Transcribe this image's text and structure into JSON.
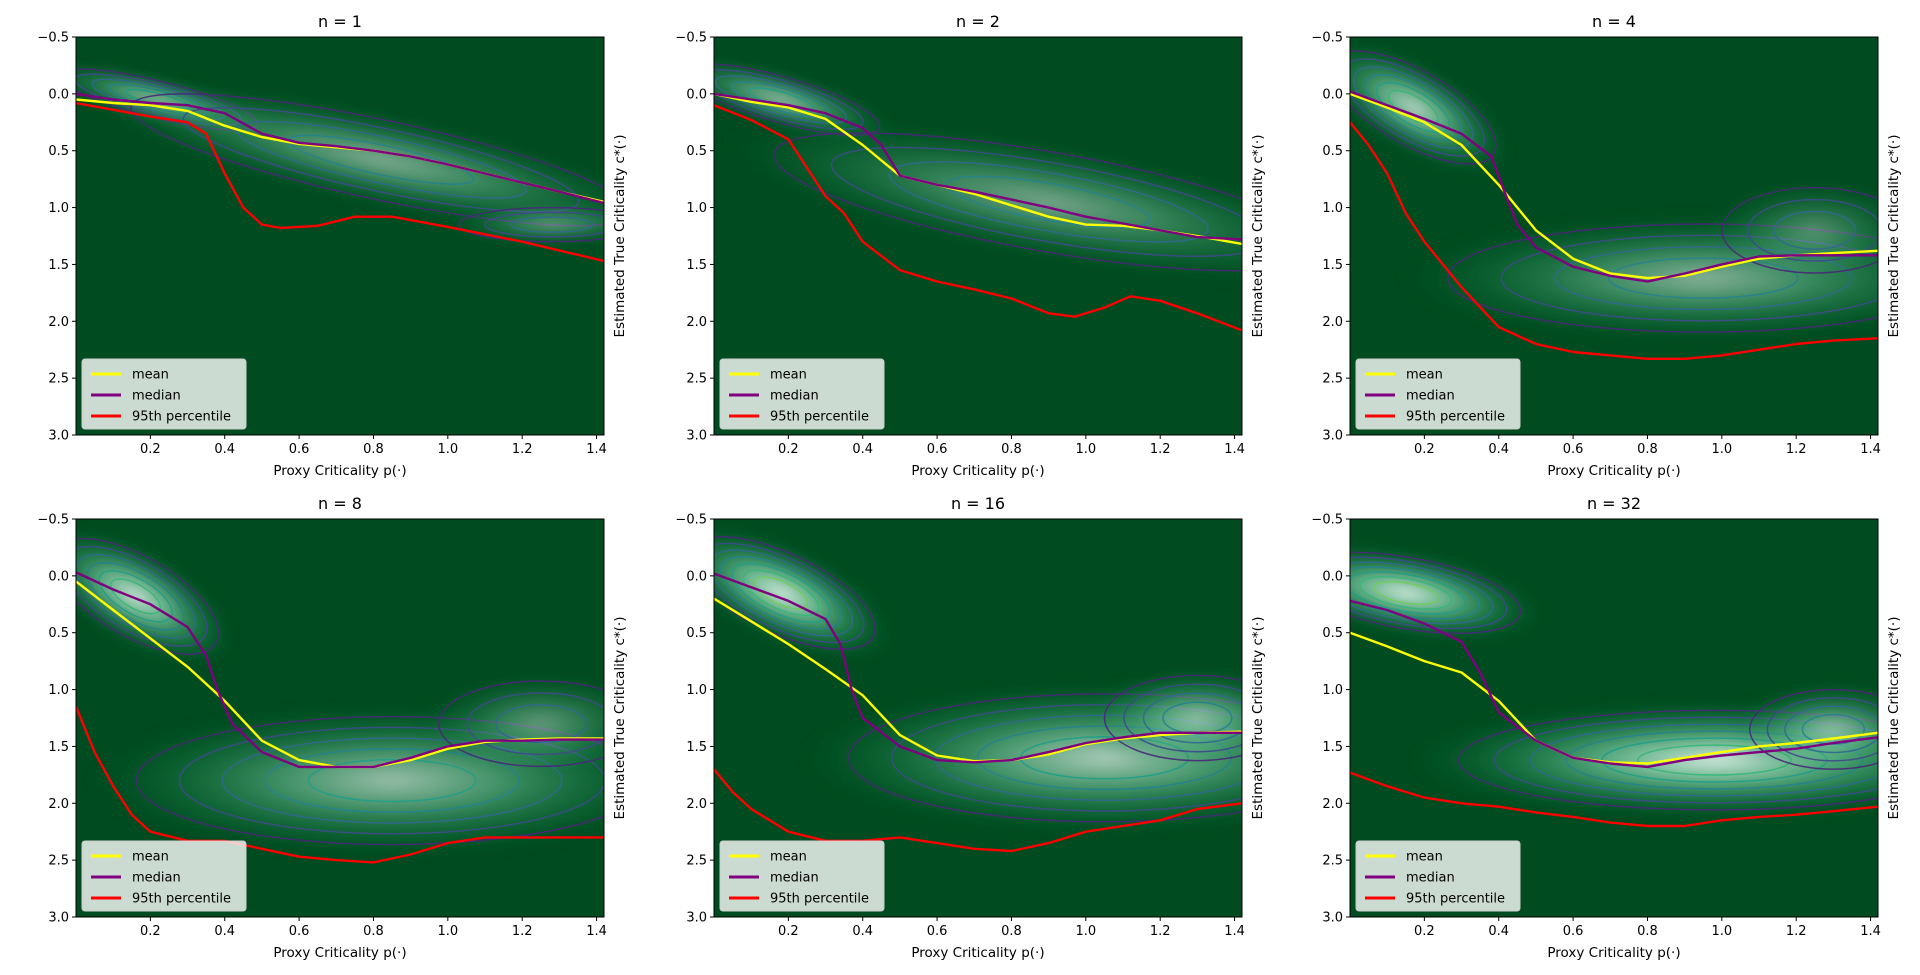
{
  "figure": {
    "type": "kde-contour-grid"
  },
  "colors": {
    "background_dark": "#004b20",
    "mean": "#ffff00",
    "median": "#800080",
    "p95": "#ff0000",
    "contour_levels": [
      "#482878",
      "#3e4a89",
      "#31688e",
      "#26828e",
      "#1f9e89",
      "#35b779",
      "#6ece58",
      "#b5de2b"
    ]
  },
  "legend": {
    "mean": "mean",
    "median": "median",
    "p95": "95th percentile"
  },
  "axes_common": {
    "xlabel": "Proxy Criticality p(·)",
    "ylabel": "Estimated True Criticality c*(·)",
    "xlim": [
      0.0,
      1.42
    ],
    "ylim": [
      3.0,
      -0.5
    ],
    "xticks": [
      "0.2",
      "0.4",
      "0.6",
      "0.8",
      "1.0",
      "1.2",
      "1.4"
    ],
    "yticks": [
      "−0.5",
      "0.0",
      "0.5",
      "1.0",
      "1.5",
      "2.0",
      "2.5",
      "3.0"
    ]
  },
  "chart_data": [
    {
      "type": "heatmap",
      "title": "n = 1",
      "mean": [
        [
          0.0,
          0.05
        ],
        [
          0.1,
          0.08
        ],
        [
          0.2,
          0.1
        ],
        [
          0.3,
          0.15
        ],
        [
          0.4,
          0.28
        ],
        [
          0.5,
          0.38
        ],
        [
          0.6,
          0.44
        ],
        [
          0.7,
          0.47
        ],
        [
          0.8,
          0.5
        ],
        [
          0.9,
          0.55
        ],
        [
          1.0,
          0.62
        ],
        [
          1.1,
          0.7
        ],
        [
          1.2,
          0.78
        ],
        [
          1.3,
          0.86
        ],
        [
          1.42,
          0.95
        ]
      ],
      "median": [
        [
          0.0,
          0.0
        ],
        [
          0.1,
          0.05
        ],
        [
          0.2,
          0.08
        ],
        [
          0.3,
          0.1
        ],
        [
          0.4,
          0.17
        ],
        [
          0.5,
          0.35
        ],
        [
          0.6,
          0.43
        ],
        [
          0.7,
          0.46
        ],
        [
          0.8,
          0.5
        ],
        [
          0.9,
          0.55
        ],
        [
          1.0,
          0.62
        ],
        [
          1.1,
          0.7
        ],
        [
          1.2,
          0.78
        ],
        [
          1.3,
          0.86
        ],
        [
          1.42,
          0.96
        ]
      ],
      "p95": [
        [
          0.0,
          0.08
        ],
        [
          0.1,
          0.14
        ],
        [
          0.2,
          0.2
        ],
        [
          0.3,
          0.25
        ],
        [
          0.35,
          0.35
        ],
        [
          0.4,
          0.7
        ],
        [
          0.45,
          1.0
        ],
        [
          0.5,
          1.15
        ],
        [
          0.55,
          1.18
        ],
        [
          0.65,
          1.16
        ],
        [
          0.75,
          1.08
        ],
        [
          0.85,
          1.08
        ],
        [
          1.0,
          1.17
        ],
        [
          1.2,
          1.3
        ],
        [
          1.42,
          1.47
        ]
      ],
      "blobs": [
        {
          "x": 0.22,
          "y": 0.05,
          "rx": 0.22,
          "ry": 0.13,
          "rot": 14,
          "s": 0.5
        },
        {
          "x": 0.82,
          "y": 0.58,
          "rx": 0.55,
          "ry": 0.28,
          "rot": 12,
          "s": 0.38
        },
        {
          "x": 1.28,
          "y": 1.15,
          "rx": 0.2,
          "ry": 0.12,
          "rot": 0,
          "s": 0.3
        }
      ]
    },
    {
      "type": "heatmap",
      "title": "n = 2",
      "mean": [
        [
          0.0,
          0.0
        ],
        [
          0.1,
          0.07
        ],
        [
          0.2,
          0.12
        ],
        [
          0.3,
          0.22
        ],
        [
          0.4,
          0.45
        ],
        [
          0.5,
          0.72
        ],
        [
          0.6,
          0.8
        ],
        [
          0.7,
          0.88
        ],
        [
          0.8,
          0.98
        ],
        [
          0.9,
          1.08
        ],
        [
          1.0,
          1.15
        ],
        [
          1.1,
          1.16
        ],
        [
          1.2,
          1.2
        ],
        [
          1.3,
          1.25
        ],
        [
          1.42,
          1.32
        ]
      ],
      "median": [
        [
          0.0,
          0.0
        ],
        [
          0.1,
          0.05
        ],
        [
          0.2,
          0.1
        ],
        [
          0.3,
          0.17
        ],
        [
          0.4,
          0.3
        ],
        [
          0.45,
          0.45
        ],
        [
          0.5,
          0.72
        ],
        [
          0.6,
          0.8
        ],
        [
          0.7,
          0.86
        ],
        [
          0.8,
          0.93
        ],
        [
          0.9,
          1.0
        ],
        [
          1.0,
          1.08
        ],
        [
          1.1,
          1.14
        ],
        [
          1.2,
          1.2
        ],
        [
          1.3,
          1.26
        ],
        [
          1.42,
          1.28
        ]
      ],
      "p95": [
        [
          0.0,
          0.1
        ],
        [
          0.1,
          0.23
        ],
        [
          0.2,
          0.4
        ],
        [
          0.25,
          0.65
        ],
        [
          0.3,
          0.9
        ],
        [
          0.35,
          1.05
        ],
        [
          0.4,
          1.3
        ],
        [
          0.5,
          1.55
        ],
        [
          0.6,
          1.65
        ],
        [
          0.7,
          1.72
        ],
        [
          0.8,
          1.8
        ],
        [
          0.9,
          1.93
        ],
        [
          0.97,
          1.96
        ],
        [
          1.05,
          1.88
        ],
        [
          1.12,
          1.78
        ],
        [
          1.2,
          1.82
        ],
        [
          1.3,
          1.93
        ],
        [
          1.42,
          2.08
        ]
      ],
      "blobs": [
        {
          "x": 0.18,
          "y": 0.05,
          "rx": 0.22,
          "ry": 0.16,
          "rot": 16,
          "s": 0.45
        },
        {
          "x": 0.9,
          "y": 0.95,
          "rx": 0.6,
          "ry": 0.35,
          "rot": 10,
          "s": 0.35
        }
      ]
    },
    {
      "type": "heatmap",
      "title": "n = 4",
      "mean": [
        [
          0.0,
          0.0
        ],
        [
          0.1,
          0.12
        ],
        [
          0.2,
          0.25
        ],
        [
          0.3,
          0.45
        ],
        [
          0.4,
          0.8
        ],
        [
          0.5,
          1.2
        ],
        [
          0.6,
          1.45
        ],
        [
          0.7,
          1.58
        ],
        [
          0.8,
          1.62
        ],
        [
          0.9,
          1.6
        ],
        [
          1.0,
          1.52
        ],
        [
          1.1,
          1.45
        ],
        [
          1.2,
          1.42
        ],
        [
          1.3,
          1.4
        ],
        [
          1.42,
          1.38
        ]
      ],
      "median": [
        [
          0.0,
          -0.02
        ],
        [
          0.1,
          0.1
        ],
        [
          0.2,
          0.22
        ],
        [
          0.3,
          0.35
        ],
        [
          0.38,
          0.55
        ],
        [
          0.42,
          0.9
        ],
        [
          0.45,
          1.15
        ],
        [
          0.5,
          1.35
        ],
        [
          0.6,
          1.52
        ],
        [
          0.7,
          1.6
        ],
        [
          0.8,
          1.65
        ],
        [
          0.9,
          1.58
        ],
        [
          1.0,
          1.5
        ],
        [
          1.1,
          1.43
        ],
        [
          1.2,
          1.42
        ],
        [
          1.3,
          1.42
        ],
        [
          1.42,
          1.42
        ]
      ],
      "p95": [
        [
          0.0,
          0.25
        ],
        [
          0.05,
          0.45
        ],
        [
          0.1,
          0.7
        ],
        [
          0.15,
          1.05
        ],
        [
          0.2,
          1.3
        ],
        [
          0.3,
          1.7
        ],
        [
          0.4,
          2.05
        ],
        [
          0.5,
          2.2
        ],
        [
          0.6,
          2.27
        ],
        [
          0.7,
          2.3
        ],
        [
          0.8,
          2.33
        ],
        [
          0.9,
          2.33
        ],
        [
          1.0,
          2.3
        ],
        [
          1.1,
          2.25
        ],
        [
          1.2,
          2.2
        ],
        [
          1.3,
          2.17
        ],
        [
          1.42,
          2.15
        ]
      ],
      "blobs": [
        {
          "x": 0.17,
          "y": 0.12,
          "rx": 0.2,
          "ry": 0.26,
          "rot": 30,
          "s": 0.55
        },
        {
          "x": 0.95,
          "y": 1.62,
          "rx": 0.55,
          "ry": 0.38,
          "rot": 0,
          "s": 0.4
        },
        {
          "x": 1.25,
          "y": 1.2,
          "rx": 0.2,
          "ry": 0.3,
          "rot": 0,
          "s": 0.25
        }
      ]
    },
    {
      "type": "heatmap",
      "title": "n = 8",
      "mean": [
        [
          0.0,
          0.05
        ],
        [
          0.1,
          0.3
        ],
        [
          0.2,
          0.55
        ],
        [
          0.3,
          0.8
        ],
        [
          0.4,
          1.1
        ],
        [
          0.5,
          1.45
        ],
        [
          0.6,
          1.62
        ],
        [
          0.7,
          1.68
        ],
        [
          0.8,
          1.68
        ],
        [
          0.9,
          1.62
        ],
        [
          1.0,
          1.52
        ],
        [
          1.1,
          1.46
        ],
        [
          1.2,
          1.44
        ],
        [
          1.3,
          1.43
        ],
        [
          1.42,
          1.43
        ]
      ],
      "median": [
        [
          0.0,
          -0.03
        ],
        [
          0.1,
          0.12
        ],
        [
          0.2,
          0.25
        ],
        [
          0.3,
          0.45
        ],
        [
          0.35,
          0.7
        ],
        [
          0.38,
          1.0
        ],
        [
          0.42,
          1.3
        ],
        [
          0.5,
          1.55
        ],
        [
          0.6,
          1.68
        ],
        [
          0.7,
          1.68
        ],
        [
          0.8,
          1.68
        ],
        [
          0.9,
          1.6
        ],
        [
          1.0,
          1.5
        ],
        [
          1.1,
          1.45
        ],
        [
          1.2,
          1.45
        ],
        [
          1.3,
          1.44
        ],
        [
          1.42,
          1.44
        ]
      ],
      "p95": [
        [
          0.0,
          1.15
        ],
        [
          0.05,
          1.55
        ],
        [
          0.1,
          1.85
        ],
        [
          0.15,
          2.1
        ],
        [
          0.2,
          2.25
        ],
        [
          0.3,
          2.33
        ],
        [
          0.4,
          2.33
        ],
        [
          0.5,
          2.4
        ],
        [
          0.6,
          2.47
        ],
        [
          0.7,
          2.5
        ],
        [
          0.8,
          2.52
        ],
        [
          0.9,
          2.45
        ],
        [
          1.0,
          2.35
        ],
        [
          1.1,
          2.3
        ],
        [
          1.2,
          2.3
        ],
        [
          1.3,
          2.3
        ],
        [
          1.42,
          2.3
        ]
      ],
      "blobs": [
        {
          "x": 0.16,
          "y": 0.18,
          "rx": 0.2,
          "ry": 0.28,
          "rot": 30,
          "s": 0.6
        },
        {
          "x": 0.85,
          "y": 1.8,
          "rx": 0.55,
          "ry": 0.45,
          "rot": 0,
          "s": 0.45
        },
        {
          "x": 1.25,
          "y": 1.3,
          "rx": 0.22,
          "ry": 0.3,
          "rot": 0,
          "s": 0.3
        }
      ]
    },
    {
      "type": "heatmap",
      "title": "n = 16",
      "mean": [
        [
          0.0,
          0.2
        ],
        [
          0.1,
          0.4
        ],
        [
          0.2,
          0.6
        ],
        [
          0.3,
          0.82
        ],
        [
          0.4,
          1.05
        ],
        [
          0.5,
          1.4
        ],
        [
          0.6,
          1.58
        ],
        [
          0.7,
          1.63
        ],
        [
          0.8,
          1.62
        ],
        [
          0.9,
          1.57
        ],
        [
          1.0,
          1.48
        ],
        [
          1.1,
          1.43
        ],
        [
          1.2,
          1.4
        ],
        [
          1.3,
          1.38
        ],
        [
          1.42,
          1.37
        ]
      ],
      "median": [
        [
          0.0,
          -0.02
        ],
        [
          0.1,
          0.1
        ],
        [
          0.2,
          0.22
        ],
        [
          0.3,
          0.38
        ],
        [
          0.34,
          0.6
        ],
        [
          0.37,
          1.0
        ],
        [
          0.4,
          1.25
        ],
        [
          0.5,
          1.5
        ],
        [
          0.6,
          1.62
        ],
        [
          0.7,
          1.64
        ],
        [
          0.8,
          1.62
        ],
        [
          0.9,
          1.55
        ],
        [
          1.0,
          1.47
        ],
        [
          1.1,
          1.42
        ],
        [
          1.2,
          1.38
        ],
        [
          1.3,
          1.38
        ],
        [
          1.42,
          1.38
        ]
      ],
      "p95": [
        [
          0.0,
          1.7
        ],
        [
          0.05,
          1.9
        ],
        [
          0.1,
          2.05
        ],
        [
          0.2,
          2.25
        ],
        [
          0.3,
          2.33
        ],
        [
          0.4,
          2.33
        ],
        [
          0.5,
          2.3
        ],
        [
          0.6,
          2.35
        ],
        [
          0.7,
          2.4
        ],
        [
          0.8,
          2.42
        ],
        [
          0.9,
          2.35
        ],
        [
          1.0,
          2.25
        ],
        [
          1.1,
          2.2
        ],
        [
          1.2,
          2.15
        ],
        [
          1.3,
          2.05
        ],
        [
          1.42,
          2.0
        ]
      ],
      "blobs": [
        {
          "x": 0.18,
          "y": 0.15,
          "rx": 0.22,
          "ry": 0.28,
          "rot": 25,
          "s": 0.65
        },
        {
          "x": 1.05,
          "y": 1.6,
          "rx": 0.55,
          "ry": 0.45,
          "rot": 0,
          "s": 0.5
        },
        {
          "x": 1.3,
          "y": 1.25,
          "rx": 0.2,
          "ry": 0.3,
          "rot": 0,
          "s": 0.4
        }
      ]
    },
    {
      "type": "heatmap",
      "title": "n = 32",
      "mean": [
        [
          0.0,
          0.5
        ],
        [
          0.1,
          0.62
        ],
        [
          0.2,
          0.75
        ],
        [
          0.3,
          0.85
        ],
        [
          0.4,
          1.1
        ],
        [
          0.5,
          1.45
        ],
        [
          0.6,
          1.6
        ],
        [
          0.7,
          1.64
        ],
        [
          0.8,
          1.65
        ],
        [
          0.9,
          1.6
        ],
        [
          1.0,
          1.55
        ],
        [
          1.1,
          1.5
        ],
        [
          1.2,
          1.47
        ],
        [
          1.3,
          1.43
        ],
        [
          1.42,
          1.38
        ]
      ],
      "median": [
        [
          0.0,
          0.22
        ],
        [
          0.1,
          0.3
        ],
        [
          0.2,
          0.42
        ],
        [
          0.3,
          0.58
        ],
        [
          0.35,
          0.85
        ],
        [
          0.4,
          1.2
        ],
        [
          0.5,
          1.45
        ],
        [
          0.6,
          1.6
        ],
        [
          0.7,
          1.65
        ],
        [
          0.8,
          1.68
        ],
        [
          0.9,
          1.62
        ],
        [
          1.0,
          1.58
        ],
        [
          1.1,
          1.55
        ],
        [
          1.2,
          1.52
        ],
        [
          1.3,
          1.47
        ],
        [
          1.42,
          1.42
        ]
      ],
      "p95": [
        [
          0.0,
          1.73
        ],
        [
          0.1,
          1.85
        ],
        [
          0.2,
          1.95
        ],
        [
          0.3,
          2.0
        ],
        [
          0.4,
          2.03
        ],
        [
          0.5,
          2.08
        ],
        [
          0.6,
          2.12
        ],
        [
          0.7,
          2.17
        ],
        [
          0.8,
          2.2
        ],
        [
          0.9,
          2.2
        ],
        [
          1.0,
          2.15
        ],
        [
          1.1,
          2.12
        ],
        [
          1.2,
          2.1
        ],
        [
          1.3,
          2.07
        ],
        [
          1.42,
          2.03
        ]
      ],
      "blobs": [
        {
          "x": 0.15,
          "y": 0.15,
          "rx": 0.25,
          "ry": 0.25,
          "rot": 10,
          "s": 0.7
        },
        {
          "x": 0.98,
          "y": 1.62,
          "rx": 0.55,
          "ry": 0.35,
          "rot": 0,
          "s": 0.62
        },
        {
          "x": 1.3,
          "y": 1.35,
          "rx": 0.18,
          "ry": 0.28,
          "rot": 0,
          "s": 0.4
        }
      ]
    }
  ]
}
